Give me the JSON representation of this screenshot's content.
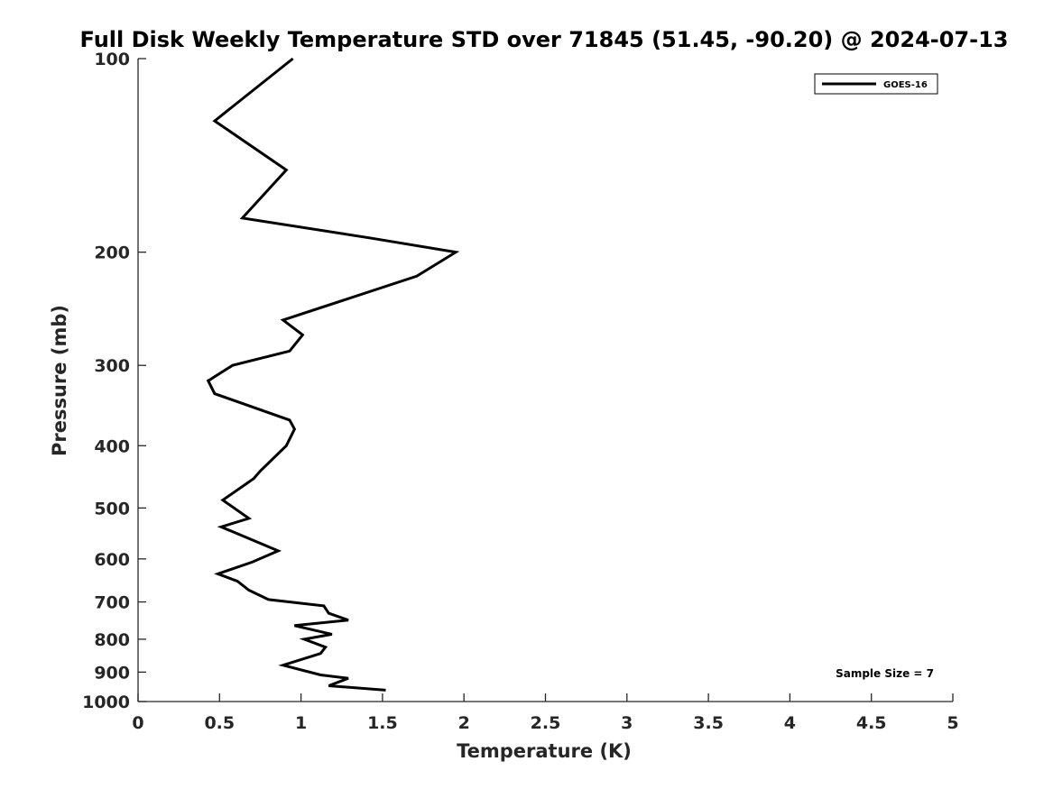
{
  "chart_data": {
    "type": "line",
    "title": "Full Disk Weekly Temperature STD over 71845 (51.45, -90.20) @ 2024-07-13",
    "xlabel": "Temperature (K)",
    "ylabel": "Pressure (mb)",
    "xlim": [
      0,
      5
    ],
    "ylim": [
      100,
      1000
    ],
    "y_scale": "log",
    "y_reversed": true,
    "x_ticks": [
      "0",
      "0.5",
      "1",
      "1.5",
      "2",
      "2.5",
      "3",
      "3.5",
      "4",
      "4.5",
      "5"
    ],
    "y_ticks": [
      "100",
      "200",
      "300",
      "400",
      "500",
      "600",
      "700",
      "800",
      "900",
      "1000"
    ],
    "grid": false,
    "legend_position": "top-right",
    "annotation": "Sample Size = 7",
    "series": [
      {
        "name": "GOES-16",
        "color": "#000000",
        "points": [
          [
            0.95,
            100
          ],
          [
            0.47,
            125
          ],
          [
            0.91,
            149
          ],
          [
            0.64,
            177
          ],
          [
            1.42,
            190
          ],
          [
            1.95,
            200
          ],
          [
            1.71,
            218
          ],
          [
            0.89,
            255
          ],
          [
            1.01,
            269
          ],
          [
            0.93,
            285
          ],
          [
            0.58,
            300
          ],
          [
            0.43,
            317
          ],
          [
            0.47,
            332
          ],
          [
            0.93,
            365
          ],
          [
            0.96,
            377
          ],
          [
            0.91,
            400
          ],
          [
            0.75,
            438
          ],
          [
            0.71,
            450
          ],
          [
            0.52,
            486
          ],
          [
            0.68,
            519
          ],
          [
            0.51,
            535
          ],
          [
            0.86,
            583
          ],
          [
            0.7,
            607
          ],
          [
            0.49,
            633
          ],
          [
            0.61,
            650
          ],
          [
            0.68,
            671
          ],
          [
            0.8,
            694
          ],
          [
            1.14,
            710
          ],
          [
            1.17,
            729
          ],
          [
            1.29,
            747
          ],
          [
            0.96,
            762
          ],
          [
            1.19,
            786
          ],
          [
            1.02,
            800
          ],
          [
            1.15,
            823
          ],
          [
            1.12,
            842
          ],
          [
            0.89,
            878
          ],
          [
            1.12,
            909
          ],
          [
            1.29,
            920
          ],
          [
            1.17,
            945
          ],
          [
            1.52,
            960
          ]
        ]
      }
    ]
  }
}
